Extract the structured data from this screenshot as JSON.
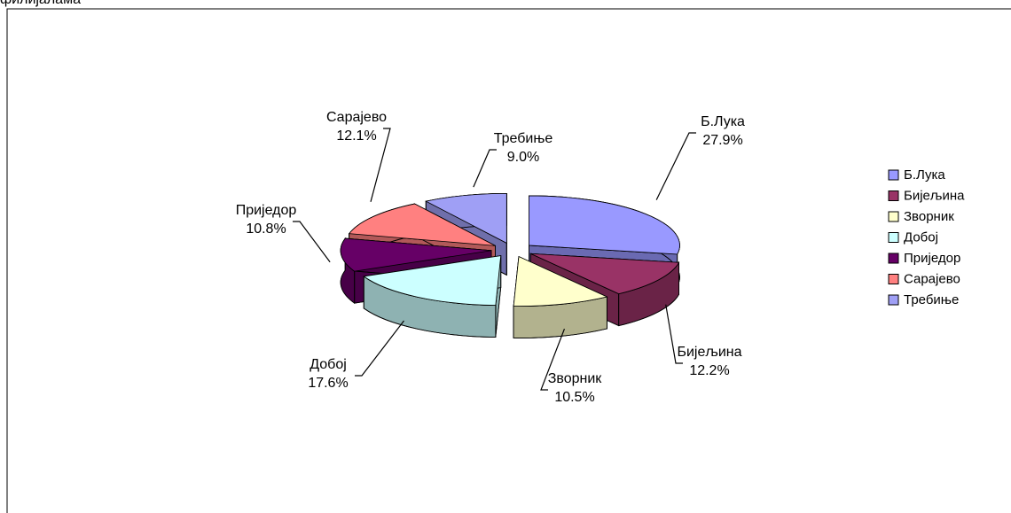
{
  "chart_data": {
    "type": "pie",
    "title": "филијалама",
    "categories": [
      "Б.Лука",
      "Бијељина",
      "Зворник",
      "Добој",
      "Приједор",
      "Сарајево",
      "Требиње"
    ],
    "values": [
      27.9,
      12.2,
      10.5,
      17.6,
      10.8,
      12.1,
      9.0
    ],
    "value_labels": [
      "27.9%",
      "12.2%",
      "10.5%",
      "17.6%",
      "10.8%",
      "12.1%",
      "9.0%"
    ],
    "colors": [
      "#9999ff",
      "#993366",
      "#ffffcc",
      "#ccffff",
      "#660066",
      "#ff8080",
      "#9f9ff5"
    ],
    "legend": "right"
  }
}
